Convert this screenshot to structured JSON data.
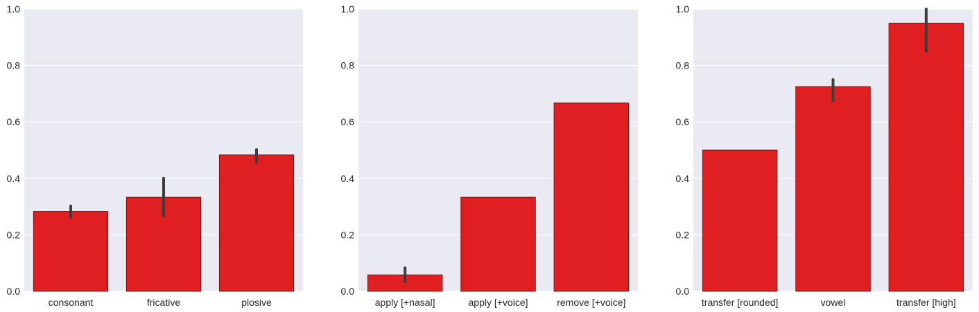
{
  "style": {
    "bar_color": "#e02020",
    "bar_edge": "#7a1414",
    "plot_bg": "#eaeaf2",
    "grid_color": "#ffffff",
    "errorbar_color": "#3d3d3d",
    "text_color": "#262626"
  },
  "chart_data": [
    {
      "type": "bar",
      "categories": [
        "consonant",
        "fricative",
        "plosive"
      ],
      "values": [
        0.283,
        0.333,
        0.483
      ],
      "error_low": [
        0.262,
        0.267,
        0.457
      ],
      "error_high": [
        0.302,
        0.4,
        0.502
      ],
      "ylim": [
        0,
        1.0
      ],
      "yticks": [
        "0.0",
        "0.2",
        "0.4",
        "0.6",
        "0.8",
        "1.0"
      ],
      "grid": true
    },
    {
      "type": "bar",
      "categories": [
        "apply [+nasal]",
        "apply [+voice]",
        "remove [+voice]"
      ],
      "values": [
        0.058,
        0.333,
        0.667
      ],
      "error_low": [
        0.033,
        null,
        null
      ],
      "error_high": [
        0.083,
        null,
        null
      ],
      "ylim": [
        0,
        1.0
      ],
      "yticks": [
        "0.0",
        "0.2",
        "0.4",
        "0.6",
        "0.8",
        "1.0"
      ],
      "grid": true
    },
    {
      "type": "bar",
      "categories": [
        "transfer [rounded]",
        "vowel",
        "transfer [high]"
      ],
      "values": [
        0.5,
        0.725,
        0.95
      ],
      "error_low": [
        null,
        0.675,
        0.85
      ],
      "error_high": [
        null,
        0.75,
        1.0
      ],
      "ylim": [
        0,
        1.0
      ],
      "yticks": [
        "0.0",
        "0.2",
        "0.4",
        "0.6",
        "0.8",
        "1.0"
      ],
      "grid": true
    }
  ]
}
